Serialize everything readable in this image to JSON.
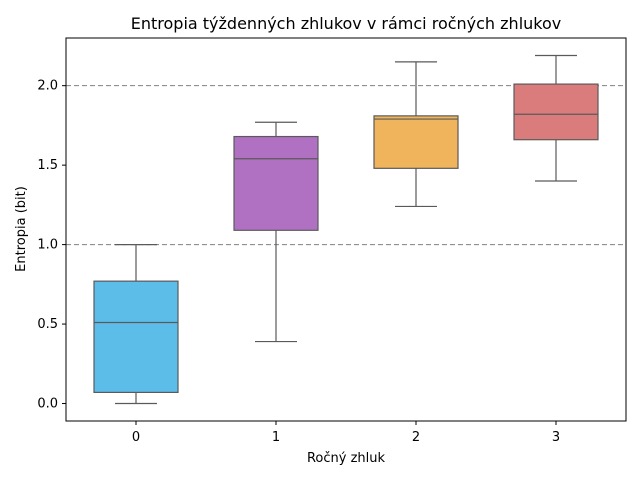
{
  "chart_data": {
    "type": "box",
    "title": "Entropia týždenných zhlukov v rámci ročných zhlukov",
    "xlabel": "Ročný zhluk",
    "ylabel": "Entropia (bit)",
    "ylim": [
      -0.11,
      2.3
    ],
    "y_ticks": [
      "0.0",
      "0.5",
      "1.0",
      "1.5",
      "2.0"
    ],
    "reference_lines": [
      1.0,
      2.0
    ],
    "grid": false,
    "categories": [
      "0",
      "1",
      "2",
      "3"
    ],
    "boxes": [
      {
        "category": "0",
        "whisker_low": 0.0,
        "q1": 0.07,
        "median": 0.51,
        "q3": 0.77,
        "whisker_high": 1.0,
        "color": "#5bbde8"
      },
      {
        "category": "1",
        "whisker_low": 0.39,
        "q1": 1.09,
        "median": 1.54,
        "q3": 1.68,
        "whisker_high": 1.77,
        "color": "#b071c2"
      },
      {
        "category": "2",
        "whisker_low": 1.24,
        "q1": 1.48,
        "median": 1.79,
        "q3": 1.81,
        "whisker_high": 2.15,
        "color": "#f0b45c"
      },
      {
        "category": "3",
        "whisker_low": 1.4,
        "q1": 1.66,
        "median": 1.82,
        "q3": 2.01,
        "whisker_high": 2.19,
        "color": "#d97c7b"
      }
    ]
  }
}
